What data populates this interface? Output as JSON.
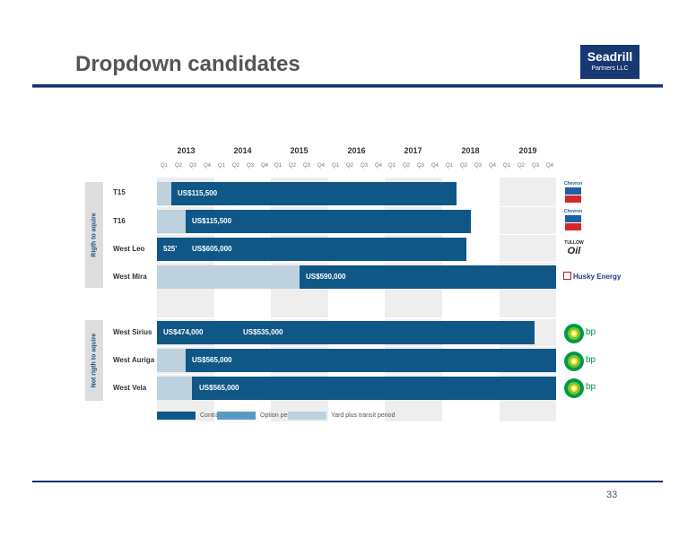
{
  "title": "Dropdown candidates",
  "logo": {
    "line1": "Seadrill",
    "line2": "Partners LLC"
  },
  "page_number": "33",
  "years": [
    "2013",
    "2014",
    "2015",
    "2016",
    "2017",
    "2018",
    "2019"
  ],
  "quarters": [
    "Q1",
    "Q2",
    "Q3",
    "Q4"
  ],
  "groups": [
    {
      "label": "Rigth to aquire"
    },
    {
      "label": "Not rigth to aquire"
    }
  ],
  "rigs": [
    {
      "name": "T15",
      "rate": "US$115,500"
    },
    {
      "name": "T16",
      "rate": "US$115,500"
    },
    {
      "name": "West Leo",
      "rate_prefix": "525'",
      "rate": "US$605,000"
    },
    {
      "name": "West Mira",
      "rate": "US$590,000"
    },
    {
      "name": "West Sirius",
      "rate_a": "US$474,000",
      "rate_b": "US$535,000"
    },
    {
      "name": "West Auriga",
      "rate": "US$565,000"
    },
    {
      "name": "West Vela",
      "rate": "US$565,000"
    }
  ],
  "clients": {
    "t15": "Chevron",
    "t16": "Chevron",
    "west_leo": "TULLOW",
    "west_mira": "Husky Energy",
    "west_sirius": "bp",
    "west_auriga": "bp",
    "west_vela": "bp"
  },
  "legend": [
    {
      "label": "Contracted",
      "color": "#0f5787"
    },
    {
      "label": "Option period",
      "color": "#5a99c4"
    },
    {
      "label": "Yard plus transit period",
      "color": "#bdd1df"
    }
  ],
  "colors": {
    "contracted": "#0f5787",
    "option": "#5a99c4",
    "yard": "#bdd1df",
    "brand": "#173872"
  }
}
